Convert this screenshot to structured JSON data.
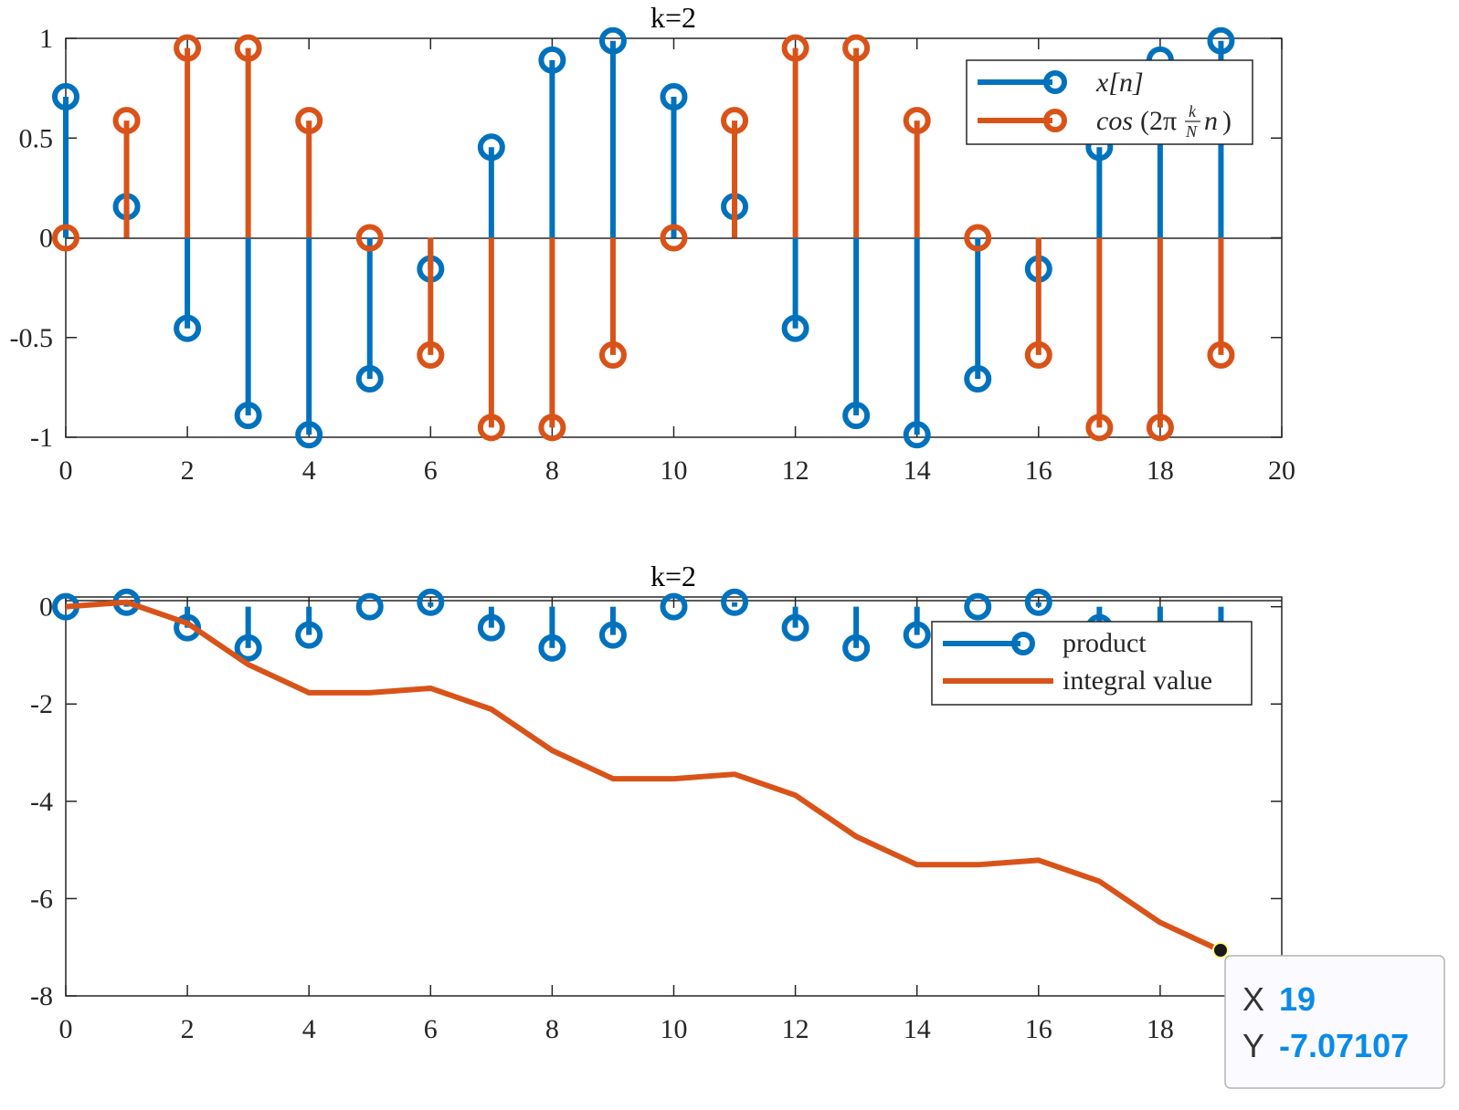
{
  "chart_data": [
    {
      "type": "stem",
      "title": "k=2",
      "xlim": [
        0,
        20
      ],
      "ylim": [
        -1,
        1
      ],
      "x_ticks": [
        "0",
        "2",
        "4",
        "6",
        "8",
        "10",
        "12",
        "14",
        "16",
        "18",
        "20"
      ],
      "y_ticks": [
        "1",
        "0.5",
        "0",
        "-0.5",
        "-1"
      ],
      "grid": false,
      "legend_position": "top-right",
      "x": [
        0,
        1,
        2,
        3,
        4,
        5,
        6,
        7,
        8,
        9,
        10,
        11,
        12,
        13,
        14,
        15,
        16,
        17,
        18,
        19
      ],
      "series": [
        {
          "name": "x[n]",
          "color": "#0072BD",
          "values": [
            0.7071,
            0.1564,
            -0.454,
            -0.891,
            -0.9877,
            -0.7071,
            -0.1564,
            0.454,
            0.891,
            0.9877,
            0.7071,
            0.1564,
            -0.454,
            -0.891,
            -0.9877,
            -0.7071,
            -0.1564,
            0.454,
            0.891,
            0.9877
          ]
        },
        {
          "name": "cos(2π k/N n)",
          "color": "#D95319",
          "values": [
            0,
            0.5878,
            0.9511,
            0.9511,
            0.5878,
            0,
            -0.5878,
            -0.9511,
            -0.9511,
            -0.5878,
            0,
            0.5878,
            0.9511,
            0.9511,
            0.5878,
            0,
            -0.5878,
            -0.9511,
            -0.9511,
            -0.5878
          ]
        }
      ]
    },
    {
      "type": "stem+line",
      "title": "k=2",
      "xlim": [
        0,
        20
      ],
      "ylim": [
        -8,
        0.2
      ],
      "x_ticks": [
        "0",
        "2",
        "4",
        "6",
        "8",
        "10",
        "12",
        "14",
        "16",
        "18"
      ],
      "y_ticks": [
        "0",
        "-2",
        "-4",
        "-6",
        "-8"
      ],
      "grid": false,
      "legend_position": "top-right",
      "x": [
        0,
        1,
        2,
        3,
        4,
        5,
        6,
        7,
        8,
        9,
        10,
        11,
        12,
        13,
        14,
        15,
        16,
        17,
        18,
        19
      ],
      "series": [
        {
          "name": "product",
          "kind": "stem",
          "color": "#0072BD",
          "values": [
            0,
            0.0919,
            -0.4318,
            -0.8474,
            -0.5806,
            0,
            0.0919,
            -0.4318,
            -0.8474,
            -0.5806,
            0,
            0.0919,
            -0.4318,
            -0.8474,
            -0.5806,
            0,
            0.0919,
            -0.4318,
            -0.8474,
            -0.5806
          ]
        },
        {
          "name": "integral value",
          "kind": "line",
          "color": "#D95319",
          "values": [
            0,
            0.0919,
            -0.3399,
            -1.1873,
            -1.7679,
            -1.7679,
            -1.676,
            -2.1078,
            -2.9552,
            -3.5358,
            -3.5358,
            -3.4439,
            -3.8757,
            -4.7231,
            -5.3037,
            -5.3037,
            -5.2118,
            -5.6436,
            -6.491,
            -7.0711
          ]
        }
      ],
      "datatip": {
        "x_label": "X",
        "x_value": "19",
        "y_label": "Y",
        "y_value": "-7.07107",
        "point": [
          19,
          -7.07107
        ]
      }
    }
  ],
  "legend": {
    "top": {
      "entry1": "x[n]",
      "entry2_prefix": "cos",
      "entry2_paren_open": "(2π",
      "entry2_frac_num": "k",
      "entry2_frac_den": "N",
      "entry2_n": "n",
      "entry2_paren_close": ")"
    },
    "bottom": {
      "entry1": "product",
      "entry2": "integral value"
    }
  },
  "colors": {
    "blue": "#0072BD",
    "orange": "#D95319",
    "axis": "#262626",
    "datatip_value": "#0a8be8"
  }
}
